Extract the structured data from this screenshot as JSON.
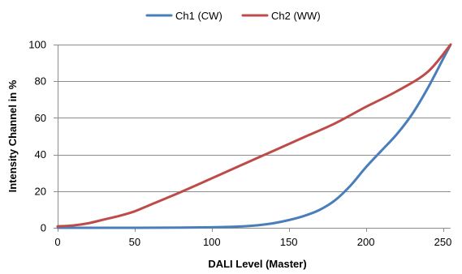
{
  "chart_data": {
    "type": "line",
    "title": "",
    "xlabel": "DALI Level (Master)",
    "ylabel": "Intensity Channel in %",
    "xlim": [
      0,
      255
    ],
    "ylim": [
      0,
      100
    ],
    "xticks": [
      0,
      50,
      100,
      150,
      200,
      250
    ],
    "yticks": [
      0,
      20,
      40,
      60,
      80,
      100
    ],
    "grid": "horizontal",
    "legend": "top-center",
    "series": [
      {
        "name": "Ch1 (CW)",
        "color": "#4a7ebb",
        "x": [
          0,
          50,
          80,
          100,
          120,
          130,
          140,
          150,
          160,
          170,
          180,
          190,
          200,
          210,
          220,
          230,
          240,
          250,
          255
        ],
        "y": [
          0,
          0,
          0.1,
          0.3,
          0.8,
          1.4,
          2.5,
          4.2,
          6.5,
          9.8,
          15,
          23,
          33,
          42,
          51,
          62,
          76,
          92,
          100
        ]
      },
      {
        "name": "Ch2 (WW)",
        "color": "#be4b48",
        "x": [
          0,
          10,
          20,
          30,
          40,
          50,
          60,
          70,
          80,
          100,
          120,
          140,
          160,
          180,
          200,
          220,
          240,
          255
        ],
        "y": [
          0.8,
          1.3,
          2.5,
          4.5,
          6.5,
          9,
          12.5,
          16,
          19.5,
          27,
          34.5,
          42,
          49.5,
          57,
          66,
          74.5,
          85,
          100
        ]
      }
    ]
  }
}
